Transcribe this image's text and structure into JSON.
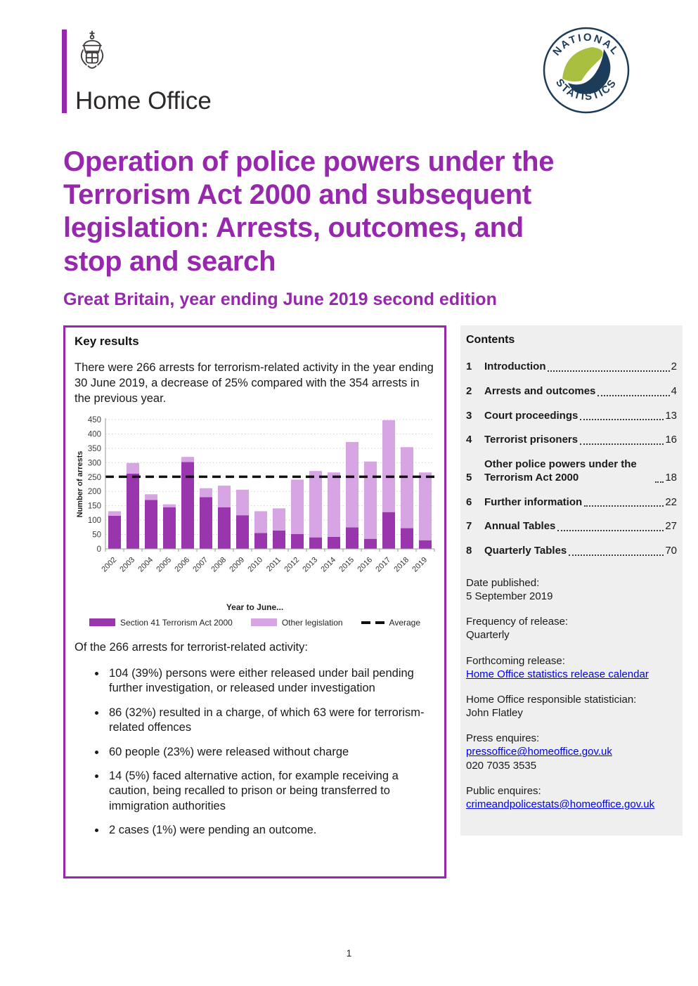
{
  "page": {
    "number": "1"
  },
  "header": {
    "logo_text": "Home Office",
    "badge_top": "NATIONAL",
    "badge_bottom": "STATISTICS"
  },
  "title": {
    "lines": [
      "Operation of police powers under the",
      "Terrorism Act 2000 and subsequent",
      "legislation: Arrests, outcomes, and",
      "stop and search"
    ],
    "subtitle": "Great Britain, year ending June 2019 second edition"
  },
  "key_results": {
    "heading": "Key results",
    "intro": "There were 266 arrests for terrorism-related activity in the year ending 30 June 2019, a decrease of 25% compared with the 354 arrests in the previous year.",
    "of_text": "Of the 266 arrests for terrorist-related activity:",
    "bullets": [
      "104 (39%) persons were either released under bail pending further investigation, or released under investigation",
      "86 (32%) resulted in a charge, of which 63 were for terrorism-related offences",
      "60 people (23%) were released without charge",
      "14 (5%) faced alternative action, for example receiving a caution, being recalled to prison or being transferred to immigration authorities",
      "2 cases (1%) were pending an outcome."
    ]
  },
  "chart_data": {
    "type": "bar",
    "stacked": true,
    "categories": [
      "2002",
      "2003",
      "2004",
      "2005",
      "2006",
      "2007",
      "2008",
      "2009",
      "2010",
      "2011",
      "2012",
      "2013",
      "2014",
      "2015",
      "2016",
      "2017",
      "2018",
      "2019"
    ],
    "series": [
      {
        "name": "Section 41 Terrorism Act 2000",
        "color": "#9935ad",
        "values": [
          115,
          262,
          170,
          145,
          302,
          180,
          145,
          117,
          55,
          64,
          52,
          40,
          42,
          75,
          35,
          128,
          72,
          30
        ]
      },
      {
        "name": "Other legislation",
        "color": "#d7a4e4",
        "values": [
          16,
          37,
          20,
          10,
          18,
          31,
          75,
          89,
          76,
          77,
          189,
          231,
          224,
          297,
          269,
          320,
          282,
          236
        ]
      }
    ],
    "totals": [
      131,
      299,
      190,
      155,
      320,
      211,
      220,
      206,
      131,
      141,
      241,
      271,
      266,
      372,
      304,
      448,
      354,
      266
    ],
    "average_line": {
      "label": "Average",
      "value": 251,
      "style": "dashed",
      "color": "#111111"
    },
    "xlabel": "Year to June...",
    "ylabel": "Number of arrests",
    "ylim": [
      0,
      450
    ],
    "ytick_step": 50,
    "grid": "dotted-horizontal",
    "legend_position": "bottom"
  },
  "contents": {
    "heading": "Contents",
    "items": [
      {
        "num": "1",
        "label": "Introduction",
        "page": "2"
      },
      {
        "num": "2",
        "label": "Arrests and outcomes",
        "page": "4"
      },
      {
        "num": "3",
        "label": "Court proceedings",
        "page": "13"
      },
      {
        "num": "4",
        "label": "Terrorist prisoners",
        "page": "16"
      },
      {
        "num": "5",
        "label": "Other police powers under the Terrorism Act 2000",
        "page": "18"
      },
      {
        "num": "6",
        "label": "Further information",
        "page": "22"
      },
      {
        "num": "7",
        "label": "Annual Tables",
        "page": "27"
      },
      {
        "num": "8",
        "label": "Quarterly Tables",
        "page": "70"
      }
    ]
  },
  "sidebar_info": [
    {
      "label": "Date published:",
      "lines": [
        {
          "text": "5 September 2019"
        }
      ]
    },
    {
      "label": "Frequency of release:",
      "lines": [
        {
          "text": "Quarterly"
        }
      ]
    },
    {
      "label": "Forthcoming release:",
      "lines": [
        {
          "text": "Home Office statistics release calendar",
          "link": true
        }
      ]
    },
    {
      "label": "Home Office responsible statistician:",
      "lines": [
        {
          "text": "John Flatley"
        }
      ]
    },
    {
      "label": "Press enquires:",
      "lines": [
        {
          "text": "pressoffice@homeoffice.gov.uk",
          "link": true
        },
        {
          "text": "020 7035 3535"
        }
      ]
    },
    {
      "label": "Public enquires:",
      "lines": [
        {
          "text": "crimeandpolicestats@homeoffice.gov.uk",
          "link": true
        }
      ]
    }
  ],
  "colors": {
    "accent": "#9728ae",
    "bar_dark": "#9935ad",
    "bar_light": "#d7a4e4",
    "link": "#0000ee",
    "navy": "#1d3c5a",
    "green": "#a8bf3f",
    "sidebar_bg": "#efefef",
    "average": "#111111"
  }
}
